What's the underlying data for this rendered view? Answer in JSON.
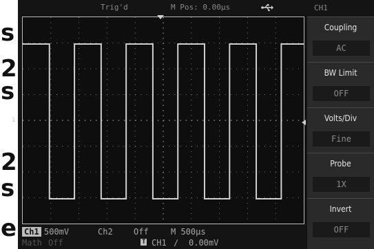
{
  "edge_letters": [
    "s",
    "2",
    "s",
    "2",
    "s",
    "e"
  ],
  "top_bar": {
    "trigger_status": "Trig'd",
    "main_position": "M Pos: 0.00µs",
    "channel": "CH1"
  },
  "status_bar": {
    "ch1_label": "Ch1",
    "ch1_scale": "500mV",
    "ch2_label": "Ch2",
    "ch2_state": "Off",
    "timebase": "M 500µs",
    "math_label": "Math",
    "math_state": "Off",
    "trigger_source_badge": "T",
    "trigger_source": "CH1",
    "trigger_slope": "∕",
    "trigger_level": "0.00mV"
  },
  "markers": {
    "ch1_marker": "1"
  },
  "waveform": {
    "type": "square",
    "high_level_fraction": 0.87,
    "low_level_fraction": 0.12,
    "rising_edges_divisions": [
      0,
      1.84,
      3.68,
      5.52,
      7.36,
      9.2
    ],
    "falling_edges_divisions": [
      0.95,
      2.79,
      4.63,
      6.47,
      8.31
    ]
  },
  "menu": {
    "items": [
      {
        "label": "Coupling",
        "value": "AC"
      },
      {
        "label": "BW  Limit",
        "value": "OFF"
      },
      {
        "label": "Volts/Div",
        "value": "Fine"
      },
      {
        "label": "Probe",
        "value": "1X"
      },
      {
        "label": "Invert",
        "value": "OFF"
      }
    ]
  },
  "colors": {
    "background": "#141414",
    "trace": "#d0d0d0",
    "grid_dots": "#7a7a7a",
    "menu_bg": "#2a2a2a"
  }
}
